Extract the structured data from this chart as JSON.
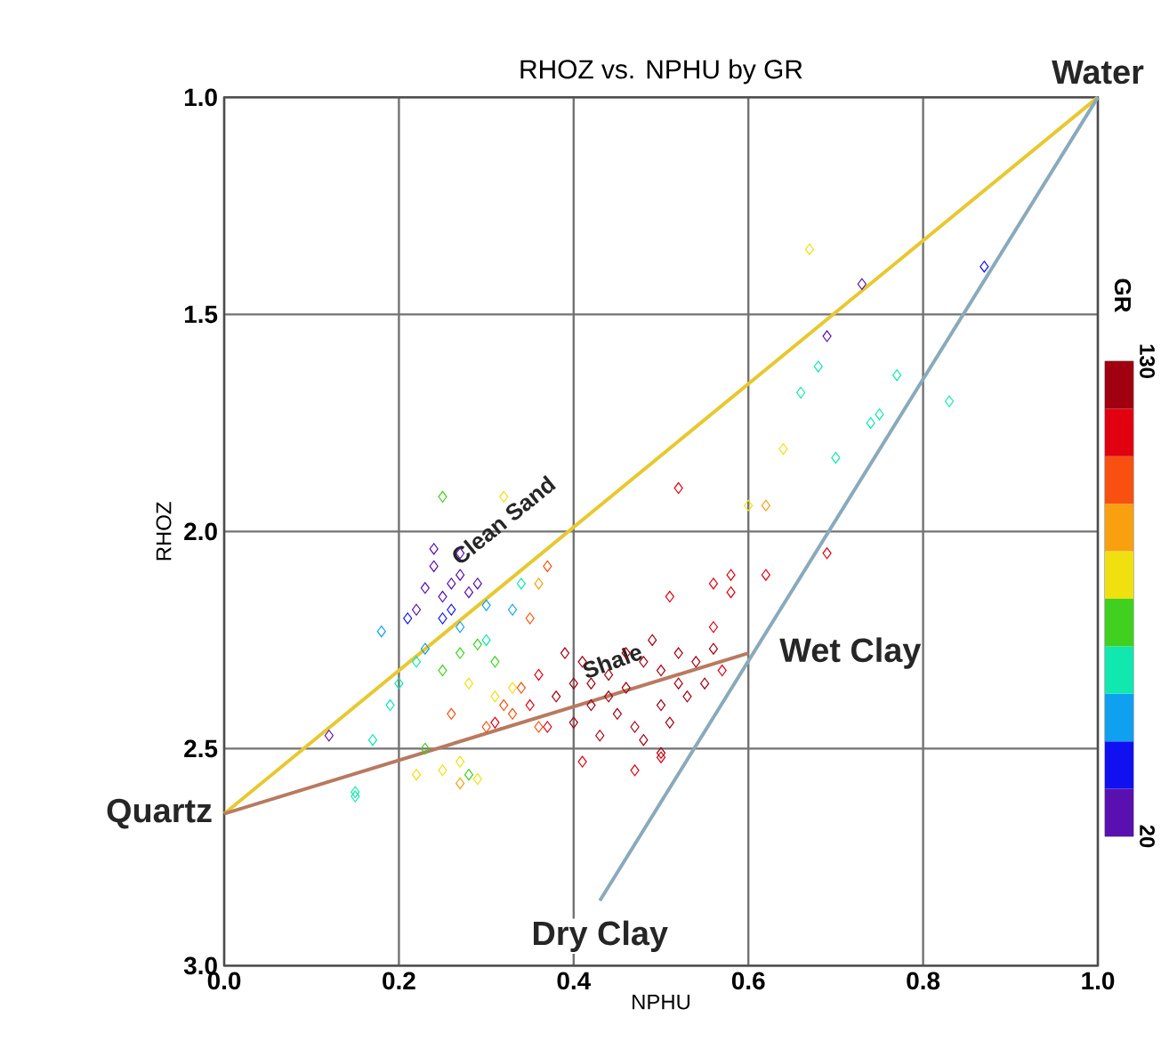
{
  "chart_data": {
    "type": "scatter",
    "title": "RHOZ vs. NPHU by GR",
    "xlabel": "NPHU",
    "ylabel": "RHOZ",
    "clabel": "GR",
    "xlim": [
      0,
      1
    ],
    "ylim": [
      3.0,
      1.0
    ],
    "xticks": [
      {
        "value": 0,
        "label": "0.0"
      },
      {
        "value": 0.2,
        "label": "0.2"
      },
      {
        "value": 0.4,
        "label": "0.4"
      },
      {
        "value": 0.6,
        "label": "0.6"
      },
      {
        "value": 0.8,
        "label": "0.8"
      },
      {
        "value": 1,
        "label": "1.0"
      }
    ],
    "yticks": [
      {
        "value": 1,
        "label": "1.0"
      },
      {
        "value": 1.5,
        "label": "1.5"
      },
      {
        "value": 2,
        "label": "2.0"
      },
      {
        "value": 2.5,
        "label": "2.5"
      },
      {
        "value": 3,
        "label": "3.0"
      }
    ],
    "clim": [
      20,
      130
    ],
    "cticks": [
      20,
      130
    ],
    "grid": true,
    "marker": "diamond",
    "series": [
      {
        "x": [
          0.24,
          0.26,
          0.25,
          0.27,
          0.23,
          0.28,
          0.26,
          0.22,
          0.24,
          0.27,
          0.21,
          0.29,
          0.25,
          0.3,
          0.27,
          0.33,
          0.18,
          0.23,
          0.2,
          0.19,
          0.22,
          0.17,
          0.15,
          0.3,
          0.34,
          0.25,
          0.27,
          0.29,
          0.25,
          0.31,
          0.28,
          0.23,
          0.32,
          0.28,
          0.31,
          0.33,
          0.25,
          0.27,
          0.36,
          0.35,
          0.37,
          0.33,
          0.3,
          0.36,
          0.26,
          0.67,
          0.73,
          0.87,
          0.69,
          0.68,
          0.66,
          0.77,
          0.83,
          0.74,
          0.75,
          0.7,
          0.64,
          0.62,
          0.6,
          0.52,
          0.62,
          0.69,
          0.58,
          0.56,
          0.58,
          0.51,
          0.56,
          0.5,
          0.12,
          0.15,
          0.22,
          0.29,
          0.27,
          0.41,
          0.47,
          0.5,
          0.38,
          0.4,
          0.42,
          0.44,
          0.46,
          0.48,
          0.5,
          0.52,
          0.54,
          0.56,
          0.45,
          0.47,
          0.43,
          0.4,
          0.37,
          0.35,
          0.5,
          0.53,
          0.55,
          0.57,
          0.49,
          0.46,
          0.41,
          0.39,
          0.36,
          0.51,
          0.44,
          0.48,
          0.42,
          0.52,
          0.34,
          0.32,
          0.31
        ],
        "values": [
          2.08,
          2.12,
          2.15,
          2.1,
          2.13,
          2.14,
          2.18,
          2.18,
          2.04,
          2.05,
          2.2,
          2.12,
          2.2,
          2.17,
          2.22,
          2.18,
          2.23,
          2.27,
          2.35,
          2.4,
          2.3,
          2.48,
          2.6,
          2.25,
          2.12,
          1.92,
          2.28,
          2.26,
          2.32,
          2.3,
          2.56,
          2.5,
          1.92,
          2.35,
          2.38,
          2.36,
          2.55,
          2.58,
          2.12,
          2.2,
          2.08,
          2.42,
          2.45,
          2.45,
          2.42,
          1.35,
          1.43,
          1.39,
          1.55,
          1.62,
          1.68,
          1.64,
          1.7,
          1.75,
          1.73,
          1.83,
          1.81,
          1.94,
          1.94,
          1.9,
          2.1,
          2.05,
          2.1,
          2.12,
          2.14,
          2.15,
          2.22,
          2.51,
          2.47,
          2.61,
          2.56,
          2.57,
          2.53,
          2.53,
          2.55,
          2.52,
          2.38,
          2.35,
          2.4,
          2.33,
          2.36,
          2.3,
          2.32,
          2.28,
          2.3,
          2.27,
          2.42,
          2.45,
          2.47,
          2.44,
          2.45,
          2.4,
          2.4,
          2.38,
          2.35,
          2.32,
          2.25,
          2.28,
          2.3,
          2.28,
          2.33,
          2.44,
          2.38,
          2.48,
          2.35,
          2.35,
          2.36,
          2.4,
          2.44
        ],
        "colors": [
          "#5a10b0",
          "#5a10b0",
          "#5a10b0",
          "#5a10b0",
          "#5a10b0",
          "#5a10b0",
          "#1010f0",
          "#5a10b0",
          "#5a10b0",
          "#5a10b0",
          "#1010f0",
          "#5a10b0",
          "#1010f0",
          "#10a0f0",
          "#10a0f0",
          "#10a0f0",
          "#10a0f0",
          "#10a0f0",
          "#10e8b0",
          "#10e8b0",
          "#10e8b0",
          "#10e8b0",
          "#10e8b0",
          "#10e8b0",
          "#10e8b0",
          "#40d020",
          "#40d020",
          "#40d020",
          "#40d020",
          "#40d020",
          "#40d020",
          "#40d020",
          "#f0e010",
          "#f0e010",
          "#f0e010",
          "#f0e010",
          "#f0e010",
          "#f8a010",
          "#f8a010",
          "#f85010",
          "#f85010",
          "#f85010",
          "#f85010",
          "#f85010",
          "#f85010",
          "#f0e010",
          "#5a10b0",
          "#1010f0",
          "#5a10b0",
          "#10e8b0",
          "#10e8b0",
          "#10e8b0",
          "#10e8b0",
          "#10e8b0",
          "#10e8b0",
          "#10e8b0",
          "#f0e010",
          "#f8a010",
          "#f0e010",
          "#e00010",
          "#e00010",
          "#e00010",
          "#e00010",
          "#e00010",
          "#e00010",
          "#e00010",
          "#e00010",
          "#a00010",
          "#5a10b0",
          "#10e8b0",
          "#f0e010",
          "#f0e010",
          "#f0e010",
          "#e00010",
          "#e00010",
          "#e00010",
          "#a00010",
          "#a00010",
          "#a00010",
          "#a00010",
          "#a00010",
          "#a00010",
          "#a00010",
          "#a00010",
          "#a00010",
          "#a00010",
          "#a00010",
          "#a00010",
          "#a00010",
          "#a00010",
          "#e00010",
          "#e00010",
          "#a00010",
          "#a00010",
          "#a00010",
          "#e00010",
          "#a00010",
          "#a00010",
          "#a00010",
          "#a00010",
          "#e00010",
          "#a00010",
          "#a00010",
          "#a00010",
          "#a00010",
          "#a00010",
          "#f85010",
          "#f85010",
          "#e00010"
        ]
      },
      {
        "type": "line",
        "marker": "none",
        "color": "#e8c830",
        "x": [
          0,
          1
        ],
        "values": [
          2.65,
          1.0
        ]
      },
      {
        "type": "line",
        "marker": "none",
        "color": "#b87a60",
        "x": [
          0,
          0.6
        ],
        "values": [
          2.65,
          2.28
        ]
      },
      {
        "type": "line",
        "marker": "none",
        "color": "#8aaabb",
        "x": [
          0.43,
          1
        ],
        "values": [
          2.85,
          1.0
        ]
      }
    ],
    "annotations": [
      {
        "text": "Water",
        "x": 1,
        "y": 1.0
      },
      {
        "text": "Quartz",
        "x": 0,
        "y": 2.65
      },
      {
        "text": "Wet Clay",
        "x": 0.6,
        "y": 2.28
      },
      {
        "text": "Dry Clay",
        "x": 0.43,
        "y": 2.85
      },
      "Clean Sand",
      "Shale"
    ]
  }
}
